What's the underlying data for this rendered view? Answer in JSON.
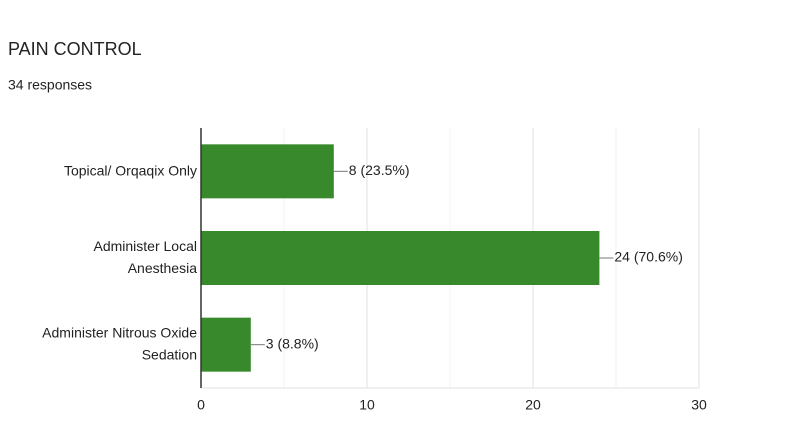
{
  "title": "PAIN CONTROL",
  "subtitle": "34 responses",
  "chart_data": {
    "type": "hbar",
    "categories": [
      [
        "Topical/ Orqaqix Only"
      ],
      [
        "Administer Local",
        "Anesthesia"
      ],
      [
        "Administer Nitrous Oxide",
        "Sedation"
      ]
    ],
    "values": [
      8,
      24,
      3
    ],
    "value_labels": [
      "8 (23.5%)",
      "24 (70.6%)",
      "3 (8.8%)"
    ],
    "color": "#38882c",
    "xlim": [
      0,
      30
    ],
    "xticks": [
      0,
      10,
      20,
      30
    ],
    "xminor": [
      5,
      15,
      25
    ],
    "grid": true
  }
}
